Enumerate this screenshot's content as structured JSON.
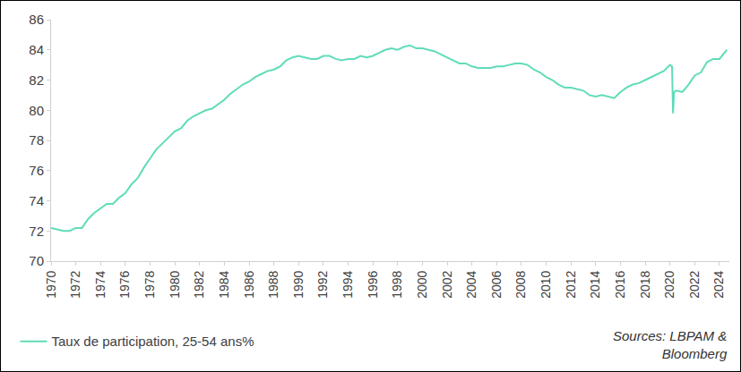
{
  "chart_data": {
    "type": "line",
    "series": [
      {
        "name": "Taux de participation, 25-54 ans%",
        "color": "#5fdcb9",
        "x": [
          1970,
          1970.5,
          1971,
          1971.5,
          1972,
          1972.5,
          1973,
          1973.5,
          1974,
          1974.5,
          1975,
          1975.5,
          1976,
          1976.5,
          1977,
          1977.5,
          1978,
          1978.5,
          1979,
          1979.5,
          1980,
          1980.5,
          1981,
          1981.5,
          1982,
          1982.5,
          1983,
          1983.5,
          1984,
          1984.5,
          1985,
          1985.5,
          1986,
          1986.5,
          1987,
          1987.5,
          1988,
          1988.5,
          1989,
          1989.5,
          1990,
          1990.5,
          1991,
          1991.5,
          1992,
          1992.5,
          1993,
          1993.5,
          1994,
          1994.5,
          1995,
          1995.5,
          1996,
          1996.5,
          1997,
          1997.5,
          1998,
          1998.5,
          1999,
          1999.5,
          2000,
          2000.5,
          2001,
          2001.5,
          2002,
          2002.5,
          2003,
          2003.5,
          2004,
          2004.5,
          2005,
          2005.5,
          2006,
          2006.5,
          2007,
          2007.5,
          2008,
          2008.5,
          2009,
          2009.5,
          2010,
          2010.5,
          2011,
          2011.5,
          2012,
          2012.5,
          2013,
          2013.5,
          2014,
          2014.5,
          2015,
          2015.5,
          2016,
          2016.5,
          2017,
          2017.5,
          2018,
          2018.5,
          2019,
          2019.5,
          2020,
          2020.17,
          2020.25,
          2020.33,
          2020.5,
          2021,
          2021.5,
          2022,
          2022.5,
          2023,
          2023.5,
          2024,
          2024.4,
          2024.6
        ],
        "values": [
          72.2,
          72.1,
          72.0,
          72.0,
          72.2,
          72.2,
          72.8,
          73.2,
          73.5,
          73.8,
          73.8,
          74.2,
          74.5,
          75.1,
          75.5,
          76.2,
          76.8,
          77.4,
          77.8,
          78.2,
          78.6,
          78.8,
          79.3,
          79.6,
          79.8,
          80.0,
          80.1,
          80.4,
          80.7,
          81.1,
          81.4,
          81.7,
          81.9,
          82.2,
          82.4,
          82.6,
          82.7,
          82.9,
          83.3,
          83.5,
          83.6,
          83.5,
          83.4,
          83.4,
          83.6,
          83.6,
          83.4,
          83.3,
          83.4,
          83.4,
          83.6,
          83.5,
          83.6,
          83.8,
          84.0,
          84.1,
          84.0,
          84.2,
          84.3,
          84.1,
          84.1,
          84.0,
          83.9,
          83.7,
          83.5,
          83.3,
          83.1,
          83.1,
          82.9,
          82.8,
          82.8,
          82.8,
          82.9,
          82.9,
          83.0,
          83.1,
          83.1,
          83.0,
          82.7,
          82.5,
          82.2,
          82.0,
          81.7,
          81.5,
          81.5,
          81.4,
          81.3,
          81.0,
          80.9,
          81.0,
          80.9,
          80.8,
          81.2,
          81.5,
          81.7,
          81.8,
          82.0,
          82.2,
          82.4,
          82.6,
          83.0,
          82.9,
          79.8,
          81.2,
          81.3,
          81.2,
          81.7,
          82.3,
          82.5,
          83.2,
          83.4,
          83.4,
          83.8,
          84.0
        ]
      }
    ],
    "xlim": [
      1970,
      2024.8
    ],
    "xticks": [
      1970,
      1972,
      1974,
      1976,
      1978,
      1980,
      1982,
      1984,
      1986,
      1988,
      1990,
      1992,
      1994,
      1996,
      1998,
      2000,
      2002,
      2004,
      2006,
      2008,
      2010,
      2012,
      2014,
      2016,
      2018,
      2020,
      2022,
      2024
    ],
    "ylim": [
      70,
      86
    ],
    "yticks": [
      70,
      72,
      74,
      76,
      78,
      80,
      82,
      84,
      86
    ],
    "grid": false,
    "legend": "bottom-left",
    "annotation_lines": [
      "Sources: LBPAM &",
      "Bloomberg"
    ]
  }
}
